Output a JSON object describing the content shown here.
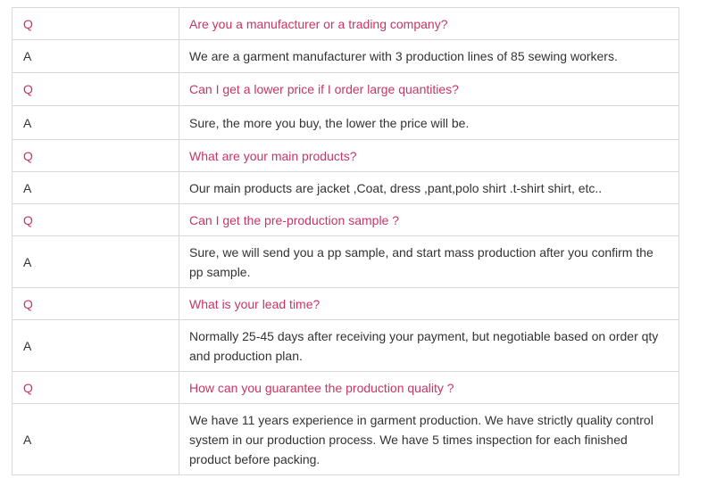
{
  "faq": {
    "colors": {
      "question": "#c73563",
      "answer": "#333333",
      "border": "#d8d8d8",
      "background": "#ffffff"
    },
    "rows": [
      {
        "label": "Q",
        "text": "Are you a manufacturer or a trading company?"
      },
      {
        "label": "A",
        "text": "We are a garment manufacturer with 3 production lines of 85 sewing workers."
      },
      {
        "label": "Q",
        "text": "Can I get a lower price if I order large quantities?"
      },
      {
        "label": "A",
        "text": "Sure, the more you buy, the lower the price will be."
      },
      {
        "label": "Q",
        "text": "What are your main products?"
      },
      {
        "label": "A",
        "text": "Our main products are jacket ,Coat, dress ,pant,polo shirt .t-shirt shirt, etc.."
      },
      {
        "label": "Q",
        "text": "Can I get the pre-production sample ?"
      },
      {
        "label": "A",
        "text": "Sure, we will send you a pp sample, and start mass production after you confirm the pp sample."
      },
      {
        "label": "Q",
        "text": "What is your lead time?"
      },
      {
        "label": "A",
        "text": "Normally 25-45 days after receiving your payment, but negotiable based on order qty and production plan."
      },
      {
        "label": "Q",
        "text": "How can you guarantee the production quality ?"
      },
      {
        "label": "A",
        "text": "We have 11 years experience in garment production. We have strictly quality control system in our production process. We have 5 times inspection for each finished product before packing."
      }
    ]
  }
}
